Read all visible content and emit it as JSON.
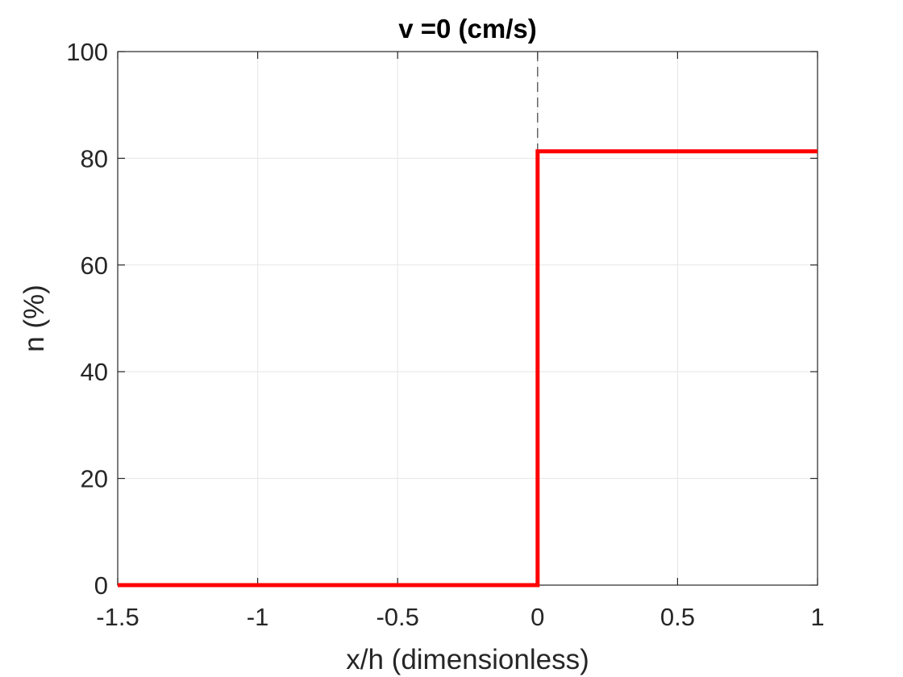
{
  "chart_data": {
    "type": "line",
    "title": "v =0 (cm/s)",
    "xlabel": "x/h (dimensionless)",
    "ylabel": "n (%)",
    "xlim": [
      -1.5,
      1
    ],
    "ylim": [
      0,
      100
    ],
    "x_ticks": [
      -1.5,
      -1,
      -0.5,
      0,
      0.5,
      1
    ],
    "x_tick_labels": [
      "-1.5",
      "-1",
      "-0.5",
      "0",
      "0.5",
      "1"
    ],
    "y_ticks": [
      0,
      20,
      40,
      60,
      80,
      100
    ],
    "y_tick_labels": [
      "0",
      "20",
      "40",
      "60",
      "80",
      "100"
    ],
    "grid": true,
    "series": [
      {
        "color": "#ff0000",
        "x": [
          -1.5,
          0,
          0,
          1
        ],
        "y": [
          0,
          0,
          81.3,
          81.3
        ]
      }
    ],
    "reference_line": {
      "x": 0,
      "style": "dashed",
      "color": "#404040"
    }
  }
}
